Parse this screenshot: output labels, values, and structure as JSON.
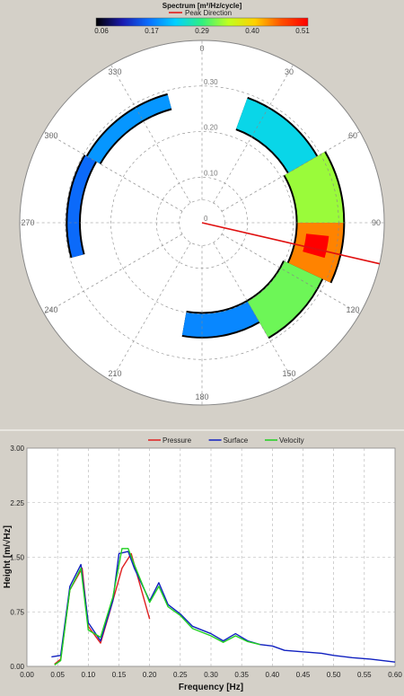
{
  "polar": {
    "colorbar_title": "Spectrum [m²/Hz/cycle]",
    "colorbar_ticks": [
      "0.06",
      "0.17",
      "0.29",
      "0.40",
      "0.51"
    ],
    "colorbar_colors": [
      "#000000",
      "#1a1ab0",
      "#0a70ff",
      "#00d0ff",
      "#30f080",
      "#c0ff20",
      "#ffd000",
      "#ff5000",
      "#ff0000"
    ],
    "legend_label": "Peak Direction",
    "legend_color": "#e01010",
    "angle_labels": [
      "0",
      "30",
      "60",
      "90",
      "120",
      "150",
      "180",
      "210",
      "240",
      "270",
      "300",
      "330"
    ],
    "radial_labels": [
      "0",
      "0.10",
      "0.20",
      "0.30"
    ],
    "radial_max": 0.4,
    "peak_direction_deg": 103,
    "energy_bands": [
      {
        "dir_start": 300,
        "dir_end": 345,
        "freq_min": 0.26,
        "freq_max": 0.29,
        "level": 0.15
      },
      {
        "dir_start": 255,
        "dir_end": 300,
        "freq_min": 0.27,
        "freq_max": 0.295,
        "level": 0.12
      },
      {
        "dir_start": 20,
        "dir_end": 60,
        "freq_min": 0.22,
        "freq_max": 0.29,
        "level": 0.2
      },
      {
        "dir_start": 60,
        "dir_end": 90,
        "freq_min": 0.21,
        "freq_max": 0.31,
        "level": 0.3
      },
      {
        "dir_start": 90,
        "dir_end": 115,
        "freq_min": 0.21,
        "freq_max": 0.31,
        "level": 0.42
      },
      {
        "dir_start": 96,
        "dir_end": 106,
        "freq_min": 0.23,
        "freq_max": 0.28,
        "level": 0.51
      },
      {
        "dir_start": 115,
        "dir_end": 150,
        "freq_min": 0.2,
        "freq_max": 0.29,
        "level": 0.28
      },
      {
        "dir_start": 150,
        "dir_end": 190,
        "freq_min": 0.2,
        "freq_max": 0.25,
        "level": 0.14
      }
    ]
  },
  "chart_data": {
    "type": "line",
    "title": "",
    "xlabel": "Frequency [Hz]",
    "ylabel": "Height [m/√Hz]",
    "xlim": [
      0.0,
      0.6
    ],
    "ylim": [
      0.0,
      3.0
    ],
    "x_ticks": [
      "0.00",
      "0.05",
      "0.10",
      "0.15",
      "0.20",
      "0.25",
      "0.30",
      "0.35",
      "0.40",
      "0.45",
      "0.50",
      "0.55",
      "0.60"
    ],
    "y_ticks": [
      "0.00",
      "0.75",
      "1.50",
      "2.25",
      "3.00"
    ],
    "grid": true,
    "legend_position": "top-center",
    "series": [
      {
        "name": "Pressure",
        "color": "#e02020",
        "x": [
          0.045,
          0.055,
          0.07,
          0.09,
          0.1,
          0.12,
          0.135,
          0.155,
          0.17,
          0.185,
          0.2
        ],
        "y": [
          0.03,
          0.1,
          1.05,
          1.35,
          0.55,
          0.32,
          0.75,
          1.35,
          1.55,
          1.1,
          0.65
        ]
      },
      {
        "name": "Surface",
        "color": "#1020c0",
        "x": [
          0.04,
          0.055,
          0.07,
          0.088,
          0.1,
          0.12,
          0.14,
          0.15,
          0.165,
          0.175,
          0.2,
          0.215,
          0.23,
          0.25,
          0.27,
          0.3,
          0.32,
          0.34,
          0.36,
          0.38,
          0.4,
          0.42,
          0.45,
          0.48,
          0.5,
          0.53,
          0.56,
          0.6
        ],
        "y": [
          0.13,
          0.15,
          1.1,
          1.4,
          0.6,
          0.35,
          0.9,
          1.55,
          1.58,
          1.35,
          0.9,
          1.15,
          0.85,
          0.72,
          0.55,
          0.45,
          0.35,
          0.45,
          0.35,
          0.3,
          0.28,
          0.22,
          0.2,
          0.18,
          0.15,
          0.12,
          0.1,
          0.06
        ]
      },
      {
        "name": "Velocity",
        "color": "#20d020",
        "x": [
          0.045,
          0.055,
          0.07,
          0.088,
          0.1,
          0.12,
          0.14,
          0.155,
          0.165,
          0.175,
          0.2,
          0.215,
          0.23,
          0.25,
          0.27,
          0.3,
          0.32,
          0.34,
          0.36,
          0.38
        ],
        "y": [
          0.02,
          0.08,
          1.05,
          1.35,
          0.5,
          0.4,
          0.95,
          1.62,
          1.62,
          1.4,
          0.88,
          1.1,
          0.82,
          0.7,
          0.52,
          0.42,
          0.33,
          0.42,
          0.34,
          0.3
        ]
      }
    ]
  }
}
